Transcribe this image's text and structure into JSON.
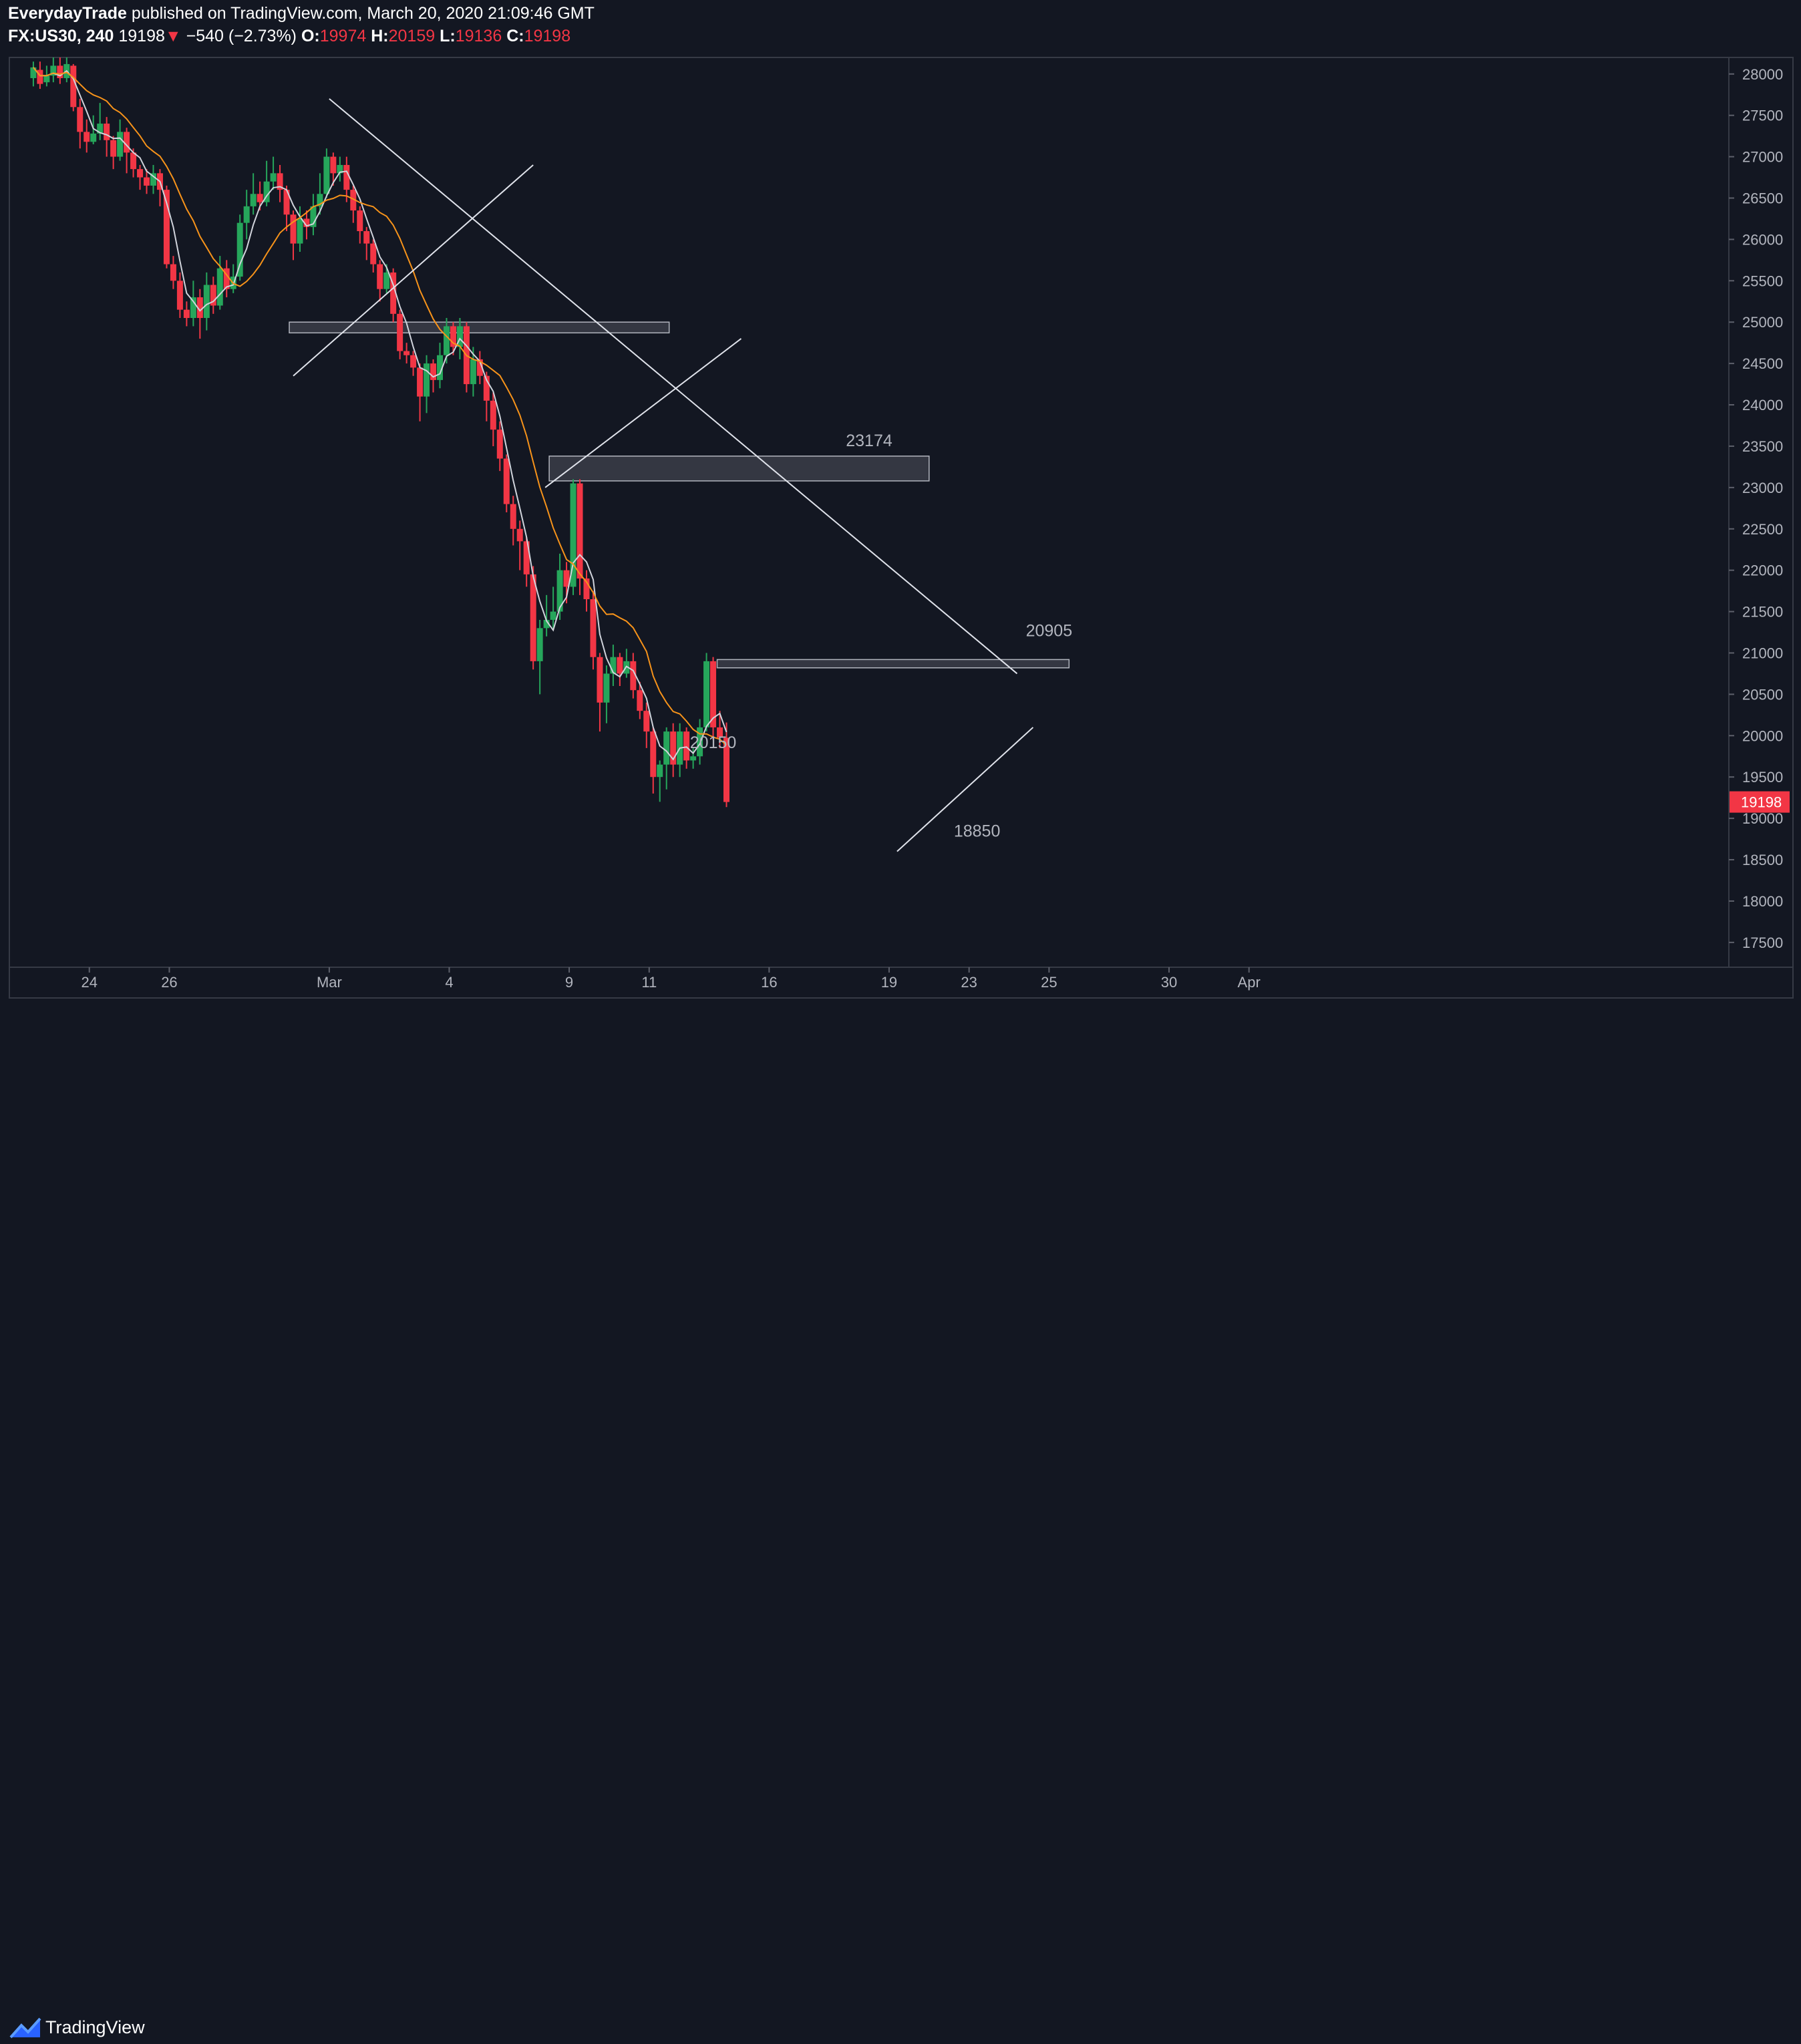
{
  "header": {
    "author": "EverydayTrade",
    "published_text": "published on TradingView.com, March 20, 2020 21:09:46 GMT",
    "symbol": "FX:US30, 240",
    "last": "19198",
    "change_arrow": "▼",
    "change": "−540 (−2.73%)",
    "o_label": "O:",
    "o_value": "19974",
    "h_label": "H:",
    "h_value": "20159",
    "l_label": "L:",
    "l_value": "19136",
    "c_label": "C:",
    "c_value": "19198"
  },
  "footer": {
    "brand": "TradingView"
  },
  "colors": {
    "background": "#131722",
    "bull": "#26a65b",
    "bear": "#f23645",
    "ma_fast": "#d1d4dc",
    "ma_slow": "#f7931a",
    "zone": "#5d606b",
    "trendline": "#e0e3eb"
  },
  "chart_data": {
    "type": "candlestick",
    "symbol": "FX:US30",
    "interval": "240",
    "y_range": [
      17200,
      28200
    ],
    "y_ticks": [
      17500,
      18000,
      18500,
      19000,
      19500,
      20000,
      20500,
      21000,
      21500,
      22000,
      22500,
      23000,
      23500,
      24000,
      24500,
      25000,
      25500,
      26000,
      26500,
      27000,
      27500,
      28000
    ],
    "x_range": [
      -8,
      35
    ],
    "x_ticks": [
      {
        "label": "19",
        "day": -10
      },
      {
        "label": "24",
        "day": -6
      },
      {
        "label": "26",
        "day": -4
      },
      {
        "label": "Mar",
        "day": 0
      },
      {
        "label": "4",
        "day": 3
      },
      {
        "label": "9",
        "day": 6
      },
      {
        "label": "11",
        "day": 8
      },
      {
        "label": "16",
        "day": 11
      },
      {
        "label": "19",
        "day": 14
      },
      {
        "label": "23",
        "day": 16
      },
      {
        "label": "25",
        "day": 18
      },
      {
        "label": "30",
        "day": 21
      },
      {
        "label": "Apr",
        "day": 23
      }
    ],
    "last_price": 19198,
    "candles": [
      [
        27950,
        28080,
        28150,
        27850
      ],
      [
        28050,
        27880,
        28150,
        27820
      ],
      [
        27900,
        27980,
        28100,
        27850
      ],
      [
        27980,
        28100,
        28200,
        27900
      ],
      [
        28100,
        27950,
        28200,
        27880
      ],
      [
        27950,
        28120,
        28200,
        27900
      ],
      [
        28100,
        27600,
        28120,
        27550
      ],
      [
        27600,
        27300,
        27700,
        27100
      ],
      [
        27300,
        27180,
        27450,
        27050
      ],
      [
        27180,
        27280,
        27500,
        27150
      ],
      [
        27280,
        27400,
        27650,
        27200
      ],
      [
        27400,
        27200,
        27480,
        27000
      ],
      [
        27200,
        27000,
        27250,
        26850
      ],
      [
        27000,
        27300,
        27450,
        26950
      ],
      [
        27300,
        27050,
        27350,
        26800
      ],
      [
        27050,
        26850,
        27100,
        26750
      ],
      [
        26850,
        26750,
        26900,
        26600
      ],
      [
        26750,
        26650,
        26850,
        26550
      ],
      [
        26650,
        26800,
        26900,
        26550
      ],
      [
        26800,
        26600,
        26850,
        26400
      ],
      [
        26600,
        25700,
        26650,
        25650
      ],
      [
        25700,
        25500,
        25800,
        25400
      ],
      [
        25500,
        25150,
        25600,
        25050
      ],
      [
        25150,
        25050,
        25250,
        24950
      ],
      [
        25050,
        25300,
        25500,
        24950
      ],
      [
        25300,
        25050,
        25400,
        24800
      ],
      [
        25050,
        25450,
        25600,
        24900
      ],
      [
        25450,
        25200,
        25550,
        25100
      ],
      [
        25200,
        25650,
        25800,
        25150
      ],
      [
        25650,
        25400,
        25750,
        25300
      ],
      [
        25400,
        25550,
        25700,
        25350
      ],
      [
        25550,
        26200,
        26300,
        25500
      ],
      [
        26200,
        26400,
        26600,
        26000
      ],
      [
        26400,
        26550,
        26800,
        26300
      ],
      [
        26550,
        26450,
        26700,
        26350
      ],
      [
        26450,
        26700,
        26950,
        26400
      ],
      [
        26700,
        26800,
        27000,
        26600
      ],
      [
        26800,
        26600,
        26900,
        26450
      ],
      [
        26600,
        26300,
        26650,
        26100
      ],
      [
        26300,
        25950,
        26350,
        25750
      ],
      [
        25950,
        26250,
        26400,
        25850
      ],
      [
        26250,
        26150,
        26350,
        26000
      ],
      [
        26150,
        26400,
        26550,
        26050
      ],
      [
        26400,
        26550,
        26800,
        26300
      ],
      [
        26550,
        27000,
        27100,
        26500
      ],
      [
        27000,
        26800,
        27050,
        26650
      ],
      [
        26800,
        26900,
        27000,
        26700
      ],
      [
        26900,
        26600,
        27000,
        26450
      ],
      [
        26600,
        26350,
        26650,
        26200
      ],
      [
        26350,
        26100,
        26400,
        25950
      ],
      [
        26100,
        25950,
        26150,
        25750
      ],
      [
        25950,
        25700,
        26000,
        25600
      ],
      [
        25700,
        25400,
        25750,
        25250
      ],
      [
        25400,
        25600,
        25700,
        25350
      ],
      [
        25600,
        25100,
        25650,
        25000
      ],
      [
        25100,
        24650,
        25150,
        24550
      ],
      [
        24650,
        24600,
        24750,
        24500
      ],
      [
        24600,
        24450,
        24650,
        24350
      ],
      [
        24450,
        24100,
        24500,
        23800
      ],
      [
        24100,
        24500,
        24600,
        23900
      ],
      [
        24500,
        24300,
        24550,
        24150
      ],
      [
        24300,
        24600,
        24750,
        24200
      ],
      [
        24600,
        24950,
        25050,
        24500
      ],
      [
        24950,
        24700,
        25000,
        24600
      ],
      [
        24700,
        24950,
        25050,
        24550
      ],
      [
        24950,
        24250,
        25000,
        24150
      ],
      [
        24250,
        24550,
        24700,
        24100
      ],
      [
        24550,
        24350,
        24650,
        24250
      ],
      [
        24350,
        24050,
        24400,
        23800
      ],
      [
        24050,
        23700,
        24150,
        23500
      ],
      [
        23700,
        23350,
        23800,
        23200
      ],
      [
        23350,
        22800,
        23400,
        22700
      ],
      [
        22800,
        22500,
        22900,
        22300
      ],
      [
        22500,
        22350,
        22600,
        22000
      ],
      [
        22350,
        21950,
        22400,
        21800
      ],
      [
        21950,
        20900,
        22050,
        20800
      ],
      [
        20900,
        21300,
        21400,
        20500
      ],
      [
        21300,
        21400,
        21700,
        21200
      ],
      [
        21400,
        21500,
        21800,
        21300
      ],
      [
        21500,
        22000,
        22200,
        21400
      ],
      [
        22000,
        21800,
        22100,
        21600
      ],
      [
        21800,
        23050,
        23100,
        21700
      ],
      [
        23050,
        21900,
        23100,
        21700
      ],
      [
        21900,
        21650,
        22000,
        21500
      ],
      [
        21650,
        20950,
        21750,
        20800
      ],
      [
        20950,
        20400,
        21000,
        20050
      ],
      [
        20400,
        20750,
        20850,
        20150
      ],
      [
        20750,
        20950,
        21100,
        20600
      ],
      [
        20950,
        20750,
        21000,
        20600
      ],
      [
        20750,
        20900,
        21050,
        20700
      ],
      [
        20900,
        20550,
        21000,
        20450
      ],
      [
        20550,
        20300,
        20650,
        20200
      ],
      [
        20300,
        20050,
        20400,
        19850
      ],
      [
        20050,
        19500,
        20100,
        19300
      ],
      [
        19500,
        19650,
        19700,
        19200
      ],
      [
        19650,
        20050,
        20100,
        19350
      ],
      [
        20050,
        19650,
        20150,
        19500
      ],
      [
        19650,
        20050,
        20150,
        19500
      ],
      [
        20050,
        19700,
        20100,
        19600
      ],
      [
        19700,
        19750,
        19850,
        19600
      ],
      [
        19750,
        20100,
        20200,
        19650
      ],
      [
        20100,
        20900,
        21000,
        20050
      ],
      [
        20900,
        20100,
        20950,
        19950
      ],
      [
        20100,
        19974,
        20300,
        19850
      ],
      [
        19974,
        19198,
        20159,
        19136
      ]
    ],
    "horizontal_zones": [
      {
        "y_top": 25000,
        "y_bottom": 24870,
        "day_start": -1,
        "day_end": 8.5
      },
      {
        "y_top": 23380,
        "y_bottom": 23080,
        "day_start": 5.5,
        "day_end": 15
      },
      {
        "y_top": 20920,
        "y_bottom": 20820,
        "day_start": 9.7,
        "day_end": 18.5
      }
    ],
    "trendlines": [
      {
        "x1": 0,
        "y1": 27700,
        "x2": 17.2,
        "y2": 20750
      },
      {
        "x1": -0.9,
        "y1": 24350,
        "x2": 5.1,
        "y2": 26900
      },
      {
        "x1": 5.4,
        "y1": 23000,
        "x2": 10.3,
        "y2": 24800
      },
      {
        "x1": 14.2,
        "y1": 18600,
        "x2": 17.6,
        "y2": 20100
      }
    ],
    "annotations": [
      {
        "text": "23174",
        "x": 13.5,
        "y": 23500
      },
      {
        "text": "20905",
        "x": 18.0,
        "y": 21200
      },
      {
        "text": "20150",
        "x": 9.6,
        "y": 19850
      },
      {
        "text": "18850",
        "x": 16.2,
        "y": 18780
      }
    ]
  }
}
